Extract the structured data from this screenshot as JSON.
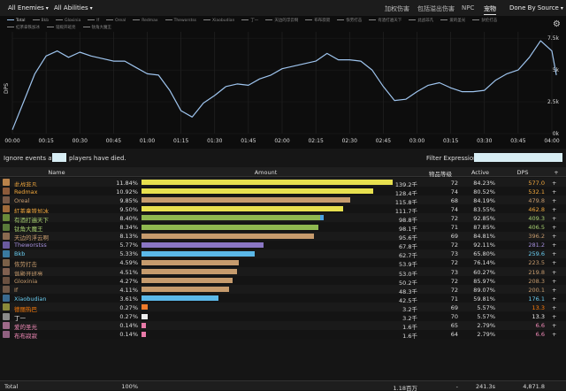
{
  "topbar": {
    "enemies": "All Enemies",
    "abilities": "All Abilities",
    "tabs": [
      "加权伤害",
      "包括溢出伤害",
      "NPC",
      "宠物"
    ],
    "active_tab": "宠物",
    "done_by": "Done By Source"
  },
  "graph": {
    "legend": [
      "Total",
      "Bkb",
      "Gloxinia",
      "If",
      "Oreal",
      "Redmax",
      "Theworstss",
      "Xiaobudian",
      "丁一",
      "天边的浮云啊",
      "布布寂寂",
      "恢劳打击",
      "有酒打遍天下",
      "此战非凡",
      "爱的圣光",
      "狄伦打击",
      "紅茶拿铁加冰",
      "谐殿开班亮",
      "钛角大魔王"
    ],
    "y_axis_label": "DPS",
    "y_ticks": [
      "7.5k",
      "5k",
      "2.5k",
      "0k"
    ],
    "x_ticks": [
      "00:00",
      "00:15",
      "00:30",
      "00:45",
      "01:00",
      "01:15",
      "01:30",
      "01:45",
      "02:00",
      "02:15",
      "02:30",
      "02:45",
      "03:00",
      "03:15",
      "03:30",
      "03:45",
      "04:00"
    ],
    "series_color": "#9ec4ee"
  },
  "filter": {
    "ignore_before": "Ignore events after",
    "ignore_after": "players have died.",
    "expr_label": "Filter Expression:"
  },
  "table": {
    "headers": {
      "name": "Name",
      "amount": "Amount",
      "level": "物品等级",
      "active": "Active",
      "dps": "DPS",
      "plus": "+"
    },
    "rows": [
      {
        "name": "此战非凡",
        "pct": "11.84%",
        "frac": 1.0,
        "amount": "139.2千",
        "level": "72",
        "active": "84.23%",
        "dps": "577.0",
        "bar": "#e7e04f",
        "name_color": "#f2a83d",
        "icon": "#b9824a"
      },
      {
        "name": "Redmax",
        "pct": "10.92%",
        "frac": 0.922,
        "amount": "128.4千",
        "level": "74",
        "active": "80.52%",
        "dps": "532.1",
        "bar": "#e7e04f",
        "name_color": "#f2a83d",
        "icon": "#8c5a3a"
      },
      {
        "name": "Oreal",
        "pct": "9.85%",
        "frac": 0.832,
        "amount": "115.8千",
        "level": "68",
        "active": "84.19%",
        "dps": "479.8",
        "bar": "#c69b6d",
        "name_color": "#c69b6d",
        "icon": "#7a5a48"
      },
      {
        "name": "紅茶拿铁加冰",
        "pct": "9.50%",
        "frac": 0.802,
        "amount": "111.7千",
        "level": "74",
        "active": "83.55%",
        "dps": "462.8",
        "bar": "#e7e04f",
        "name_color": "#f2a83d",
        "icon": "#a06a3a"
      },
      {
        "name": "有酒打遍天下",
        "pct": "8.40%",
        "frac": 0.71,
        "frac2": 0.017,
        "amount": "98.8千",
        "level": "72",
        "active": "92.85%",
        "dps": "409.3",
        "bar": "#8fb84f",
        "name_color": "#a9d271",
        "icon": "#6a8a3a"
      },
      {
        "name": "钛角大魔王",
        "pct": "8.34%",
        "frac": 0.705,
        "amount": "98.1千",
        "level": "71",
        "active": "87.85%",
        "dps": "406.5",
        "bar": "#8fb84f",
        "name_color": "#a9d271",
        "icon": "#5a7a3a"
      },
      {
        "name": "天边的浮云啊",
        "pct": "8.13%",
        "frac": 0.687,
        "amount": "95.6千",
        "level": "69",
        "active": "84.81%",
        "dps": "396.2",
        "bar": "#c69b6d",
        "name_color": "#c69b6d",
        "icon": "#8a6a50"
      },
      {
        "name": "Theworstss",
        "pct": "5.77%",
        "frac": 0.487,
        "amount": "67.8千",
        "level": "72",
        "active": "92.11%",
        "dps": "281.2",
        "bar": "#8a76c4",
        "name_color": "#a58fdb",
        "icon": "#6a5aa0"
      },
      {
        "name": "Bkb",
        "pct": "5.33%",
        "frac": 0.45,
        "amount": "62.7千",
        "level": "73",
        "active": "65.80%",
        "dps": "259.6",
        "bar": "#5bb8e8",
        "name_color": "#69ccf0",
        "icon": "#3a7aa0"
      },
      {
        "name": "恢劳打击",
        "pct": "4.59%",
        "frac": 0.388,
        "amount": "53.9千",
        "level": "72",
        "active": "76.14%",
        "dps": "223.5",
        "bar": "#c69b6d",
        "name_color": "#c69b6d",
        "icon": "#7a6048"
      },
      {
        "name": "谐殿开班亮",
        "pct": "4.51%",
        "frac": 0.381,
        "amount": "53.0千",
        "level": "73",
        "active": "60.27%",
        "dps": "219.8",
        "bar": "#c69b6d",
        "name_color": "#c69b6d",
        "icon": "#806050"
      },
      {
        "name": "Gloxinia",
        "pct": "4.27%",
        "frac": 0.361,
        "amount": "50.2千",
        "level": "72",
        "active": "85.97%",
        "dps": "208.3",
        "bar": "#c69b6d",
        "name_color": "#c69b6d",
        "icon": "#6a5040"
      },
      {
        "name": "If",
        "pct": "4.11%",
        "frac": 0.347,
        "amount": "48.3千",
        "level": "72",
        "active": "89.07%",
        "dps": "200.1",
        "bar": "#c69b6d",
        "name_color": "#c69b6d",
        "icon": "#705848"
      },
      {
        "name": "Xiaobudian",
        "pct": "3.61%",
        "frac": 0.305,
        "amount": "42.5千",
        "level": "71",
        "active": "59.81%",
        "dps": "176.1",
        "bar": "#5bb8e8",
        "name_color": "#69ccf0",
        "icon": "#3a6a90"
      },
      {
        "name": "德丽热巴",
        "pct": "0.27%",
        "frac": 0.023,
        "amount": "3.2千",
        "level": "69",
        "active": "5.57%",
        "dps": "13.3",
        "bar": "#f07a2a",
        "name_color": "#ff7d0a",
        "icon": "#8a8a3a"
      },
      {
        "name": "丁一",
        "pct": "0.27%",
        "frac": 0.023,
        "amount": "3.2千",
        "level": "70",
        "active": "5.57%",
        "dps": "13.3",
        "bar": "#eeeeee",
        "name_color": "#eeeeee",
        "icon": "#8a8a8a"
      },
      {
        "name": "爱的圣光",
        "pct": "0.14%",
        "frac": 0.012,
        "amount": "1.6千",
        "level": "65",
        "active": "2.79%",
        "dps": "6.6",
        "bar": "#e87aa8",
        "name_color": "#f58cba",
        "icon": "#a06a8a"
      },
      {
        "name": "布布寂寂",
        "pct": "0.14%",
        "frac": 0.012,
        "amount": "1.6千",
        "level": "64",
        "active": "2.79%",
        "dps": "6.6",
        "bar": "#e87aa8",
        "name_color": "#f58cba",
        "icon": "#906080"
      }
    ],
    "total": {
      "name": "Total",
      "pct": "100%",
      "amount": "1.18百万",
      "level": "-",
      "active": "241.3s",
      "dps": "4,871.8"
    }
  },
  "chart_data": {
    "type": "line",
    "ylabel": "DPS",
    "ylim": [
      0,
      8000
    ],
    "series": [
      {
        "name": "Total",
        "x": [
          "00:00",
          "00:05",
          "00:10",
          "00:15",
          "00:20",
          "00:25",
          "00:30",
          "00:35",
          "00:40",
          "00:45",
          "00:50",
          "00:55",
          "01:00",
          "01:05",
          "01:10",
          "01:15",
          "01:20",
          "01:25",
          "01:30",
          "01:35",
          "01:40",
          "01:45",
          "01:50",
          "01:55",
          "02:00",
          "02:05",
          "02:10",
          "02:15",
          "02:20",
          "02:25",
          "02:30",
          "02:35",
          "02:40",
          "02:45",
          "02:50",
          "02:55",
          "03:00",
          "03:05",
          "03:10",
          "03:15",
          "03:20",
          "03:25",
          "03:30",
          "03:35",
          "03:40",
          "03:45",
          "03:50",
          "03:55",
          "04:00",
          "04:02"
        ],
        "values": [
          300,
          2500,
          4700,
          6100,
          6500,
          6000,
          6400,
          6100,
          5900,
          5700,
          5700,
          5200,
          4700,
          4600,
          3400,
          1800,
          1300,
          2400,
          3000,
          3700,
          3900,
          3800,
          4300,
          4600,
          5100,
          5300,
          5500,
          5700,
          6300,
          5800,
          5800,
          5700,
          5000,
          3700,
          2600,
          2700,
          3300,
          3800,
          4000,
          3600,
          3300,
          3300,
          3400,
          4200,
          4700,
          5000,
          6000,
          7300,
          6500,
          4600
        ]
      }
    ]
  }
}
